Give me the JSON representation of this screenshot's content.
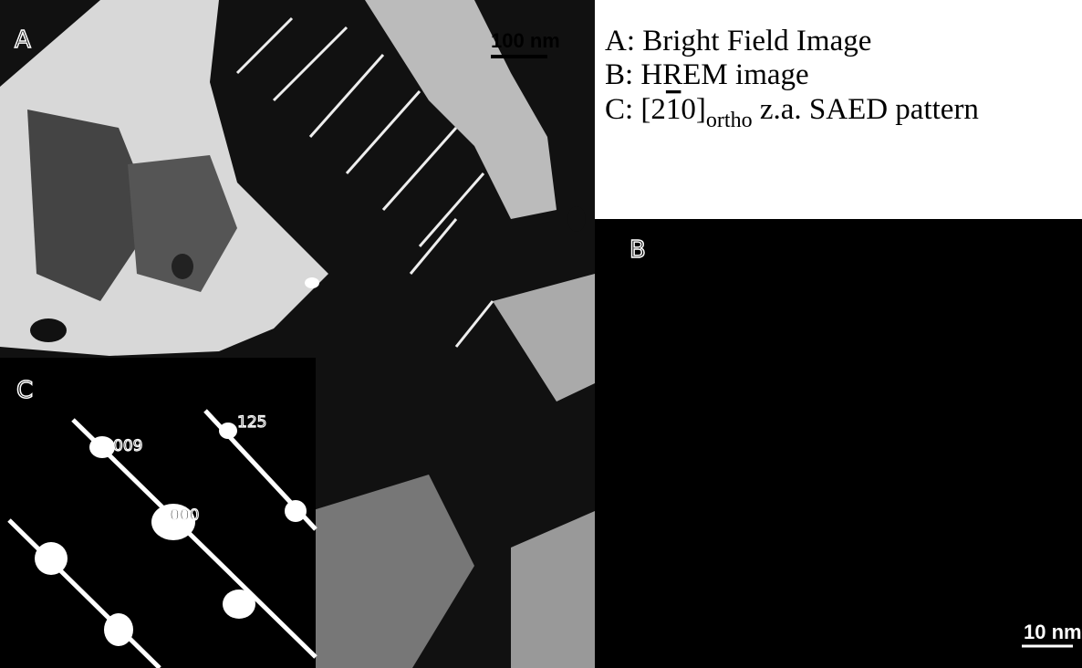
{
  "panels": {
    "a": {
      "label": "A",
      "scale_bar": "100 nm"
    },
    "b": {
      "label": "B",
      "scale_bar": "10 nm"
    },
    "c": {
      "label": "C",
      "spots": [
        "009",
        "125",
        "000"
      ]
    }
  },
  "caption": {
    "a": "A: Bright Field Image",
    "b": "B: HREM image",
    "c": {
      "prefix": "C: [2",
      "overlined": "1",
      "suffix": "0]",
      "subscript": "ortho",
      "rest": " z.a. SAED pattern"
    }
  }
}
